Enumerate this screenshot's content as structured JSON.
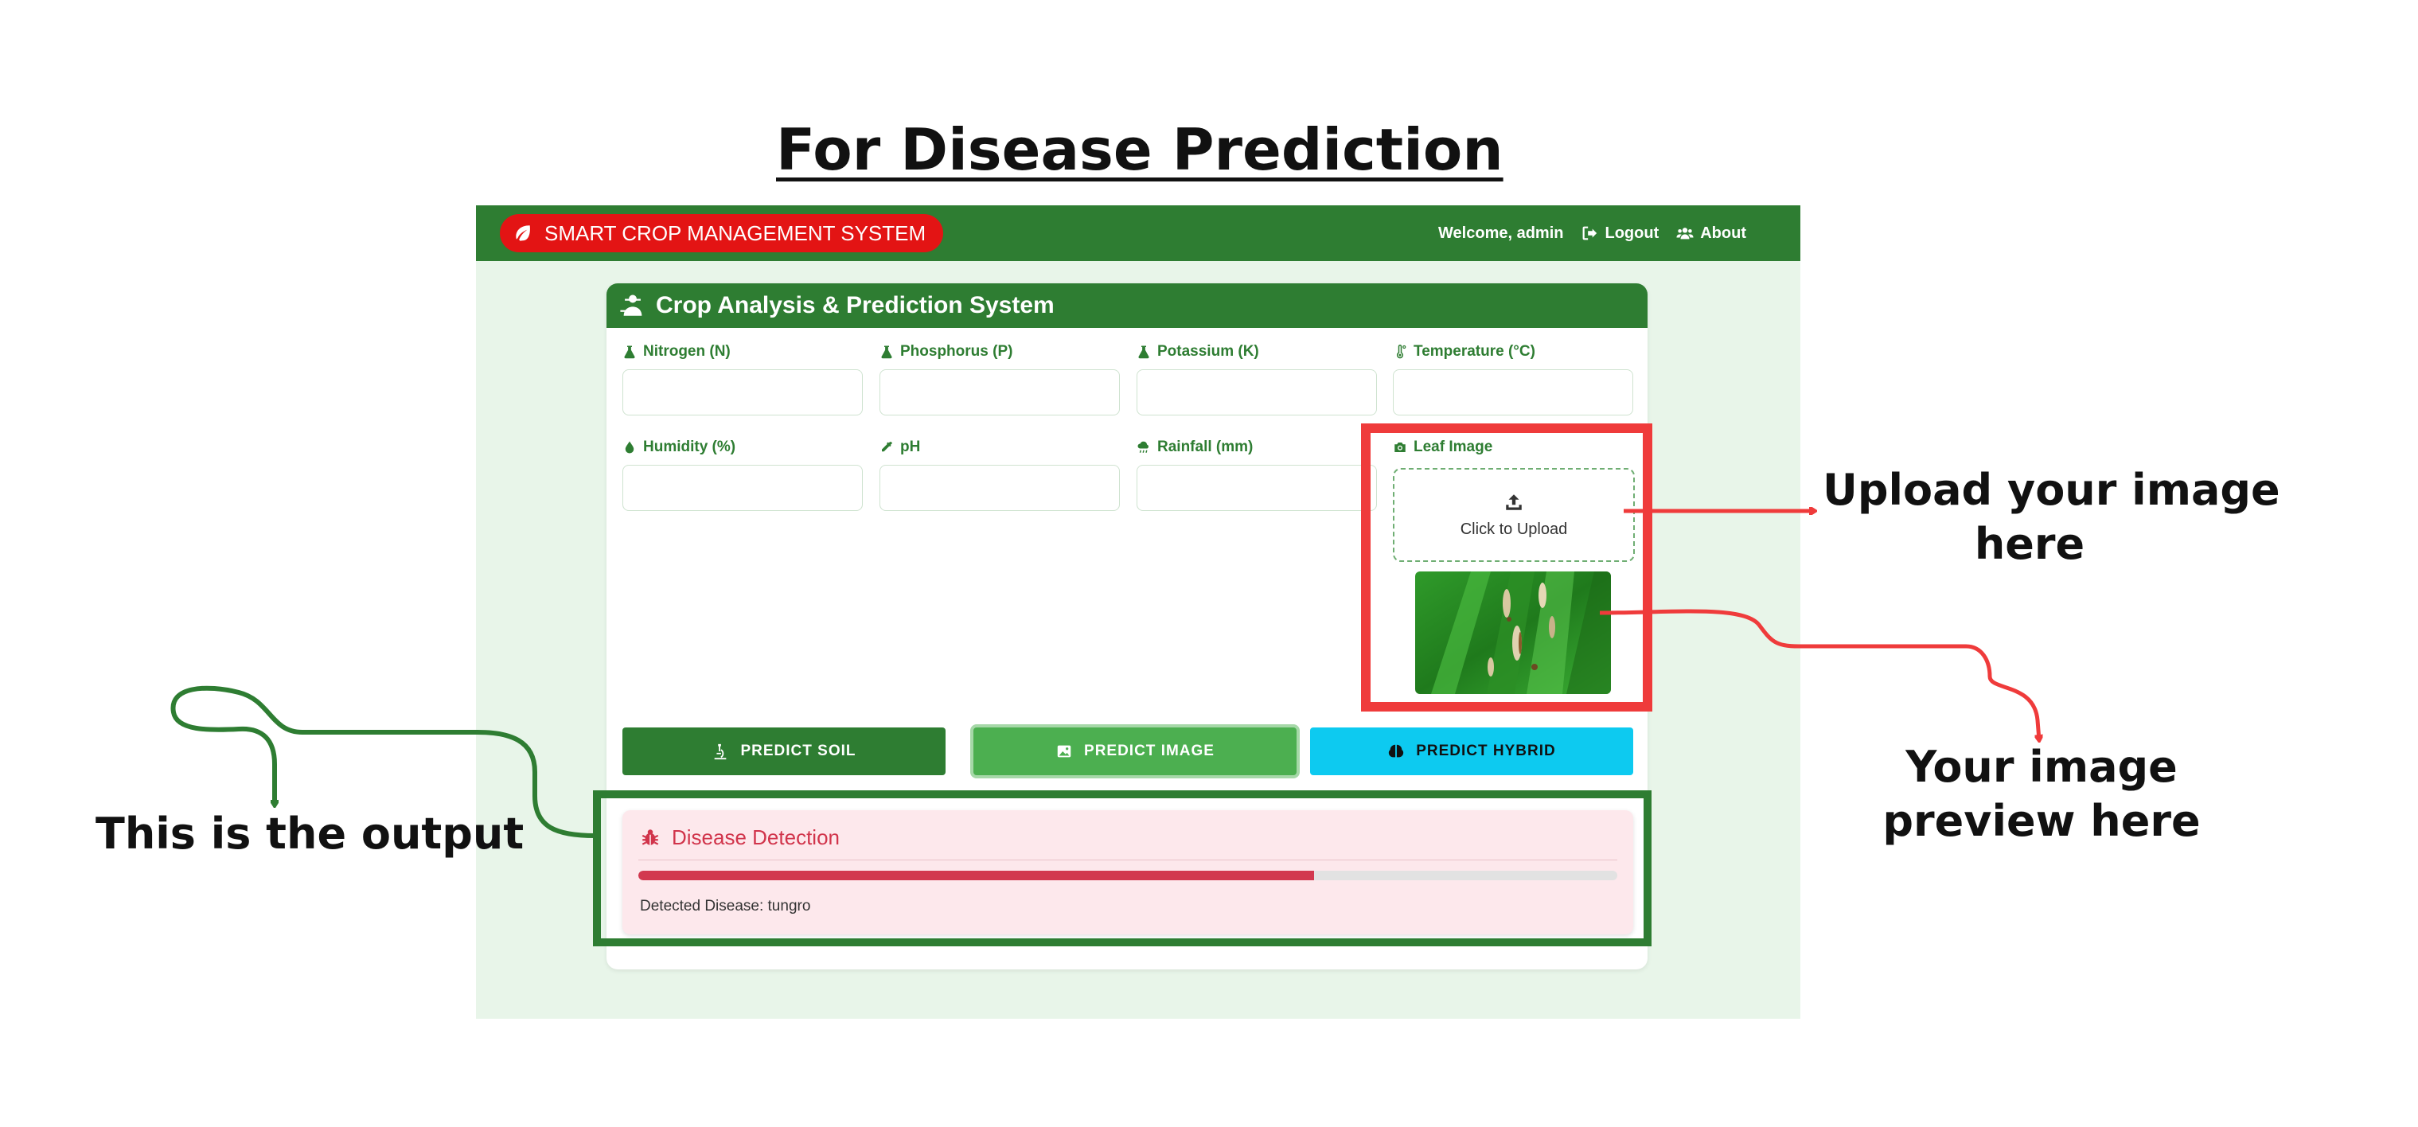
{
  "heading": "For Disease Prediction",
  "navbar": {
    "brand": "SMART CROP MANAGEMENT SYSTEM",
    "welcome": "Welcome, admin",
    "logout": "Logout",
    "about": "About",
    "icons": [
      "leaf-icon",
      "logout-icon",
      "users-icon"
    ]
  },
  "card": {
    "title": "Crop Analysis & Prediction System",
    "fields": {
      "nitrogen": {
        "label": "Nitrogen (N)",
        "value": ""
      },
      "phosphorus": {
        "label": "Phosphorus (P)",
        "value": ""
      },
      "potassium": {
        "label": "Potassium (K)",
        "value": ""
      },
      "temperature": {
        "label": "Temperature (°C)",
        "value": ""
      },
      "humidity": {
        "label": "Humidity (%)",
        "value": ""
      },
      "ph": {
        "label": "pH",
        "value": ""
      },
      "rainfall": {
        "label": "Rainfall (mm)",
        "value": ""
      }
    },
    "leaf_image": {
      "label": "Leaf Image",
      "upload_text": "Click to Upload"
    },
    "buttons": {
      "predict_soil": "PREDICT SOIL",
      "predict_image": "PREDICT IMAGE",
      "predict_hybrid": "PREDICT HYBRID"
    },
    "result": {
      "title": "Disease Detection",
      "progress": 0.69,
      "text": "Detected Disease: tungro"
    }
  },
  "annotations": {
    "upload": [
      "Upload your image",
      "here"
    ],
    "preview": [
      "Your image",
      "preview here"
    ],
    "output": "This is the output"
  },
  "colors": {
    "primary_green": "#2e7d32",
    "light_green_bg": "#e8f5e9",
    "brand_red": "#e31414",
    "predict_image_green": "#4caf50",
    "hybrid_cyan": "#0dcaf0",
    "result_bg": "#fde8ec",
    "result_red": "#d1344b",
    "annotation_red": "#ef3b3b",
    "annotation_green": "#2e7d32"
  }
}
